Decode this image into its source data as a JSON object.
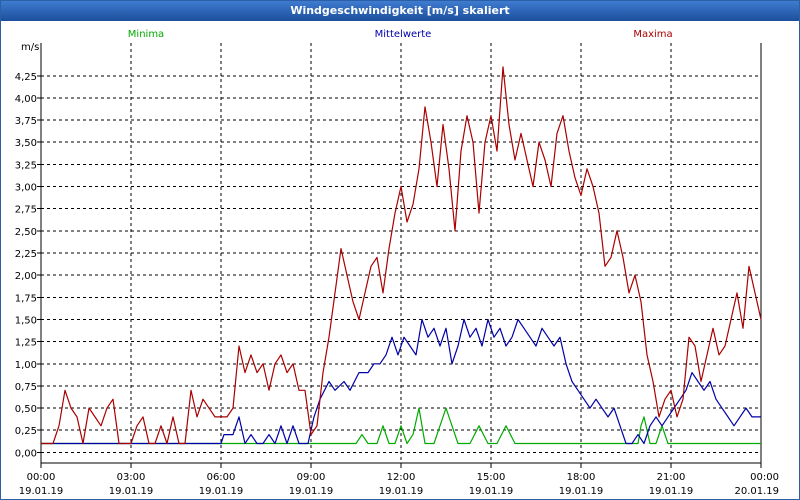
{
  "window": {
    "title": "Windgeschwindigkeit [m/s] skaliert"
  },
  "chart_data": {
    "type": "line",
    "ylabel": "m/s",
    "ylim": [
      -0.12,
      4.62
    ],
    "yticks": [
      "0,00",
      "0,25",
      "0,50",
      "0,75",
      "1,00",
      "1,25",
      "1,50",
      "1,75",
      "2,00",
      "2,25",
      "2,50",
      "2,75",
      "3,00",
      "3,25",
      "3,50",
      "3,75",
      "4,00",
      "4,25"
    ],
    "xlim": [
      0,
      24
    ],
    "xticks": [
      {
        "time": "00:00",
        "date": "19.01.19"
      },
      {
        "time": "03:00",
        "date": "19.01.19"
      },
      {
        "time": "06:00",
        "date": "19.01.19"
      },
      {
        "time": "09:00",
        "date": "19.01.19"
      },
      {
        "time": "12:00",
        "date": "19.01.19"
      },
      {
        "time": "15:00",
        "date": "19.01.19"
      },
      {
        "time": "18:00",
        "date": "19.01.19"
      },
      {
        "time": "21:00",
        "date": "19.01.19"
      },
      {
        "time": "00:00",
        "date": "20.01.19"
      }
    ],
    "grid": true,
    "series": [
      {
        "name": "Minima",
        "color": "#00aa00",
        "points": [
          [
            0,
            0.1
          ],
          [
            10.5,
            0.1
          ],
          [
            10.7,
            0.2
          ],
          [
            10.9,
            0.1
          ],
          [
            11.2,
            0.1
          ],
          [
            11.4,
            0.3
          ],
          [
            11.6,
            0.1
          ],
          [
            11.8,
            0.1
          ],
          [
            12.0,
            0.3
          ],
          [
            12.2,
            0.1
          ],
          [
            12.4,
            0.2
          ],
          [
            12.6,
            0.5
          ],
          [
            12.8,
            0.1
          ],
          [
            13.1,
            0.1
          ],
          [
            13.3,
            0.3
          ],
          [
            13.5,
            0.5
          ],
          [
            13.7,
            0.3
          ],
          [
            13.9,
            0.1
          ],
          [
            14.3,
            0.1
          ],
          [
            14.6,
            0.3
          ],
          [
            14.9,
            0.1
          ],
          [
            15.2,
            0.1
          ],
          [
            15.5,
            0.3
          ],
          [
            15.8,
            0.1
          ],
          [
            19.9,
            0.1
          ],
          [
            20.0,
            0.3
          ],
          [
            20.1,
            0.4
          ],
          [
            20.3,
            0.1
          ],
          [
            20.5,
            0.1
          ],
          [
            20.7,
            0.3
          ],
          [
            20.9,
            0.1
          ],
          [
            24,
            0.1
          ]
        ]
      },
      {
        "name": "Mittelwerte",
        "color": "#0000aa",
        "points": [
          [
            0,
            0.1
          ],
          [
            6.0,
            0.1
          ],
          [
            6.1,
            0.2
          ],
          [
            6.4,
            0.2
          ],
          [
            6.6,
            0.4
          ],
          [
            6.8,
            0.1
          ],
          [
            7.0,
            0.2
          ],
          [
            7.2,
            0.1
          ],
          [
            7.4,
            0.1
          ],
          [
            7.6,
            0.2
          ],
          [
            7.8,
            0.1
          ],
          [
            8.0,
            0.3
          ],
          [
            8.2,
            0.1
          ],
          [
            8.4,
            0.3
          ],
          [
            8.6,
            0.1
          ],
          [
            8.9,
            0.1
          ],
          [
            9.1,
            0.4
          ],
          [
            9.3,
            0.6
          ],
          [
            9.6,
            0.8
          ],
          [
            9.8,
            0.7
          ],
          [
            10.1,
            0.8
          ],
          [
            10.3,
            0.7
          ],
          [
            10.6,
            0.9
          ],
          [
            10.9,
            0.9
          ],
          [
            11.1,
            1.0
          ],
          [
            11.3,
            1.0
          ],
          [
            11.5,
            1.1
          ],
          [
            11.7,
            1.3
          ],
          [
            11.9,
            1.1
          ],
          [
            12.1,
            1.3
          ],
          [
            12.3,
            1.2
          ],
          [
            12.5,
            1.1
          ],
          [
            12.7,
            1.5
          ],
          [
            12.9,
            1.3
          ],
          [
            13.1,
            1.4
          ],
          [
            13.3,
            1.2
          ],
          [
            13.5,
            1.4
          ],
          [
            13.7,
            1.0
          ],
          [
            13.9,
            1.2
          ],
          [
            14.1,
            1.5
          ],
          [
            14.3,
            1.3
          ],
          [
            14.5,
            1.4
          ],
          [
            14.7,
            1.2
          ],
          [
            14.9,
            1.5
          ],
          [
            15.1,
            1.3
          ],
          [
            15.3,
            1.4
          ],
          [
            15.5,
            1.2
          ],
          [
            15.7,
            1.3
          ],
          [
            15.9,
            1.5
          ],
          [
            16.1,
            1.4
          ],
          [
            16.3,
            1.3
          ],
          [
            16.5,
            1.2
          ],
          [
            16.7,
            1.4
          ],
          [
            16.9,
            1.3
          ],
          [
            17.1,
            1.2
          ],
          [
            17.3,
            1.3
          ],
          [
            17.5,
            1.0
          ],
          [
            17.7,
            0.8
          ],
          [
            17.9,
            0.7
          ],
          [
            18.1,
            0.6
          ],
          [
            18.3,
            0.5
          ],
          [
            18.5,
            0.6
          ],
          [
            18.7,
            0.5
          ],
          [
            18.9,
            0.4
          ],
          [
            19.1,
            0.5
          ],
          [
            19.3,
            0.3
          ],
          [
            19.5,
            0.1
          ],
          [
            19.7,
            0.1
          ],
          [
            19.9,
            0.2
          ],
          [
            20.1,
            0.1
          ],
          [
            20.3,
            0.3
          ],
          [
            20.5,
            0.4
          ],
          [
            20.7,
            0.3
          ],
          [
            20.9,
            0.4
          ],
          [
            21.1,
            0.5
          ],
          [
            21.3,
            0.6
          ],
          [
            21.5,
            0.7
          ],
          [
            21.7,
            0.9
          ],
          [
            21.9,
            0.8
          ],
          [
            22.1,
            0.7
          ],
          [
            22.3,
            0.8
          ],
          [
            22.5,
            0.6
          ],
          [
            22.7,
            0.5
          ],
          [
            22.9,
            0.4
          ],
          [
            23.1,
            0.3
          ],
          [
            23.3,
            0.4
          ],
          [
            23.5,
            0.5
          ],
          [
            23.7,
            0.4
          ],
          [
            23.9,
            0.4
          ],
          [
            24,
            0.4
          ]
        ]
      },
      {
        "name": "Maxima",
        "color": "#aa0000",
        "points": [
          [
            0,
            0.1
          ],
          [
            0.4,
            0.1
          ],
          [
            0.6,
            0.3
          ],
          [
            0.8,
            0.7
          ],
          [
            1.0,
            0.5
          ],
          [
            1.2,
            0.4
          ],
          [
            1.4,
            0.1
          ],
          [
            1.6,
            0.5
          ],
          [
            1.8,
            0.4
          ],
          [
            2.0,
            0.3
          ],
          [
            2.2,
            0.5
          ],
          [
            2.4,
            0.6
          ],
          [
            2.6,
            0.1
          ],
          [
            3.0,
            0.1
          ],
          [
            3.2,
            0.3
          ],
          [
            3.4,
            0.4
          ],
          [
            3.6,
            0.1
          ],
          [
            3.8,
            0.1
          ],
          [
            4.0,
            0.3
          ],
          [
            4.2,
            0.1
          ],
          [
            4.4,
            0.4
          ],
          [
            4.6,
            0.1
          ],
          [
            4.8,
            0.1
          ],
          [
            5.0,
            0.7
          ],
          [
            5.2,
            0.4
          ],
          [
            5.4,
            0.6
          ],
          [
            5.6,
            0.5
          ],
          [
            5.8,
            0.4
          ],
          [
            6.0,
            0.4
          ],
          [
            6.2,
            0.4
          ],
          [
            6.4,
            0.5
          ],
          [
            6.6,
            1.2
          ],
          [
            6.8,
            0.9
          ],
          [
            7.0,
            1.1
          ],
          [
            7.2,
            0.9
          ],
          [
            7.4,
            1.0
          ],
          [
            7.6,
            0.7
          ],
          [
            7.8,
            1.0
          ],
          [
            8.0,
            1.1
          ],
          [
            8.2,
            0.9
          ],
          [
            8.4,
            1.0
          ],
          [
            8.6,
            0.7
          ],
          [
            8.8,
            0.7
          ],
          [
            9.0,
            0.2
          ],
          [
            9.2,
            0.3
          ],
          [
            9.4,
            0.9
          ],
          [
            9.6,
            1.3
          ],
          [
            9.8,
            1.8
          ],
          [
            10.0,
            2.3
          ],
          [
            10.2,
            2.0
          ],
          [
            10.4,
            1.7
          ],
          [
            10.6,
            1.5
          ],
          [
            10.8,
            1.8
          ],
          [
            11.0,
            2.1
          ],
          [
            11.2,
            2.2
          ],
          [
            11.4,
            1.8
          ],
          [
            11.6,
            2.3
          ],
          [
            11.8,
            2.7
          ],
          [
            12.0,
            3.0
          ],
          [
            12.2,
            2.6
          ],
          [
            12.4,
            2.8
          ],
          [
            12.6,
            3.2
          ],
          [
            12.8,
            3.9
          ],
          [
            13.0,
            3.5
          ],
          [
            13.2,
            3.0
          ],
          [
            13.4,
            3.7
          ],
          [
            13.6,
            3.2
          ],
          [
            13.8,
            2.5
          ],
          [
            14.0,
            3.4
          ],
          [
            14.2,
            3.8
          ],
          [
            14.4,
            3.5
          ],
          [
            14.6,
            2.7
          ],
          [
            14.8,
            3.5
          ],
          [
            15.0,
            3.8
          ],
          [
            15.2,
            3.4
          ],
          [
            15.4,
            4.35
          ],
          [
            15.6,
            3.7
          ],
          [
            15.8,
            3.3
          ],
          [
            16.0,
            3.6
          ],
          [
            16.2,
            3.3
          ],
          [
            16.4,
            3.0
          ],
          [
            16.6,
            3.5
          ],
          [
            16.8,
            3.3
          ],
          [
            17.0,
            3.0
          ],
          [
            17.2,
            3.6
          ],
          [
            17.4,
            3.8
          ],
          [
            17.6,
            3.4
          ],
          [
            17.8,
            3.1
          ],
          [
            18.0,
            2.9
          ],
          [
            18.2,
            3.2
          ],
          [
            18.4,
            3.0
          ],
          [
            18.6,
            2.7
          ],
          [
            18.8,
            2.1
          ],
          [
            19.0,
            2.2
          ],
          [
            19.2,
            2.5
          ],
          [
            19.4,
            2.2
          ],
          [
            19.6,
            1.8
          ],
          [
            19.8,
            2.0
          ],
          [
            20.0,
            1.7
          ],
          [
            20.2,
            1.1
          ],
          [
            20.4,
            0.8
          ],
          [
            20.6,
            0.4
          ],
          [
            20.8,
            0.6
          ],
          [
            21.0,
            0.7
          ],
          [
            21.2,
            0.4
          ],
          [
            21.4,
            0.6
          ],
          [
            21.6,
            1.3
          ],
          [
            21.8,
            1.2
          ],
          [
            22.0,
            0.8
          ],
          [
            22.2,
            1.1
          ],
          [
            22.4,
            1.4
          ],
          [
            22.6,
            1.1
          ],
          [
            22.8,
            1.2
          ],
          [
            23.0,
            1.5
          ],
          [
            23.2,
            1.8
          ],
          [
            23.4,
            1.4
          ],
          [
            23.6,
            2.1
          ],
          [
            23.8,
            1.8
          ],
          [
            24,
            1.5
          ]
        ]
      }
    ]
  }
}
